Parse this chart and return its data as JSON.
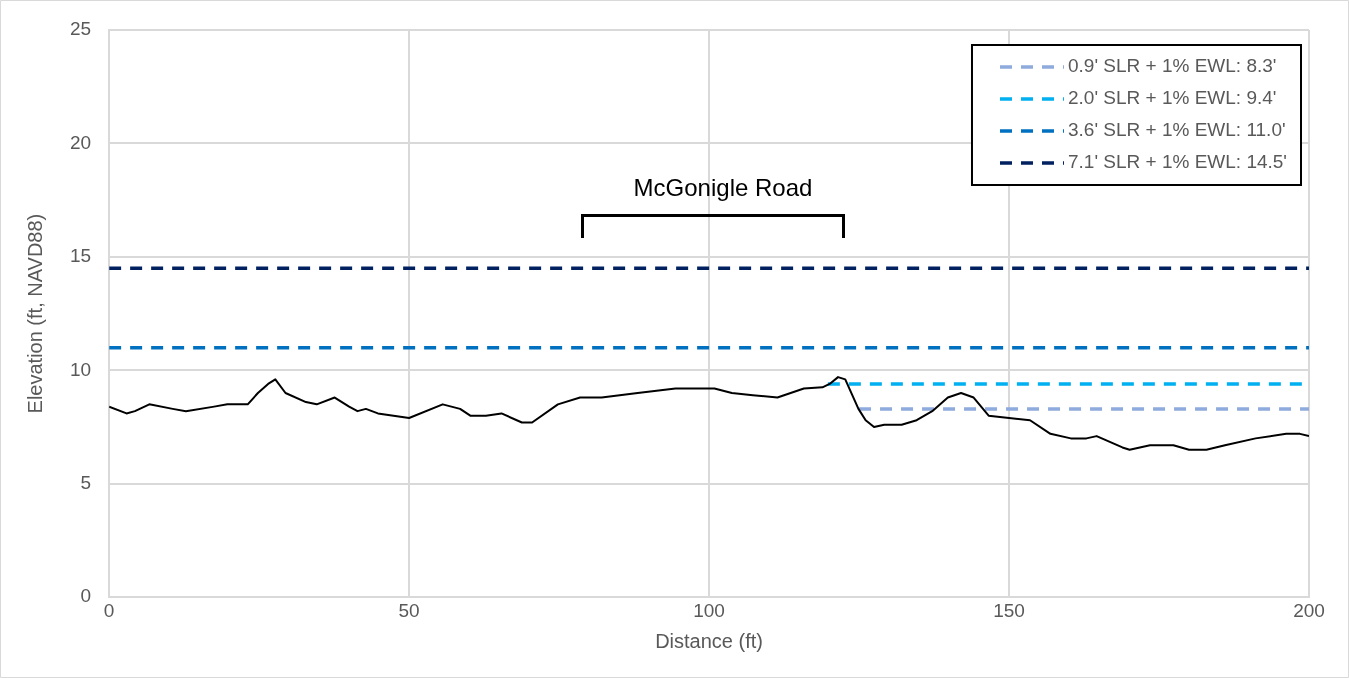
{
  "chart_data": {
    "type": "line",
    "xlabel": "Distance (ft)",
    "ylabel": "Elevation (ft, NAVD88)",
    "xlim": [
      0,
      200
    ],
    "xticks": [
      0,
      50,
      100,
      150,
      200
    ],
    "ylim": [
      0,
      25
    ],
    "yticks": [
      0,
      5,
      10,
      15,
      20,
      25
    ],
    "grid": true,
    "legend": "top right",
    "marker": "none",
    "annotations": [
      "McGonigle Road"
    ],
    "series": [
      {
        "color": "#000000",
        "line_style": "solid",
        "x": [
          0,
          2.9,
          4.3,
          6.7,
          10.6,
          12.8,
          17.5,
          19.7,
          23.1,
          24.8,
          26.5,
          27.7,
          29.4,
          32.8,
          34.6,
          37.6,
          40,
          41.4,
          42.8,
          44.8,
          50,
          55.6,
          58.5,
          60.2,
          62.8,
          65.4,
          68.8,
          70.5,
          74.8,
          78.5,
          82.1,
          88.1,
          94.4,
          100.9,
          103.8,
          107.3,
          111.4,
          115.8,
          118.9,
          120.1,
          121.5,
          122.7,
          124.9,
          126.1,
          127.5,
          129.2,
          132.1,
          134.6,
          137.2,
          139.8,
          142,
          144.1,
          146.6,
          150,
          153.5,
          156.9,
          160.3,
          162.9,
          164.6,
          168.9,
          170.1,
          173.5,
          177.4,
          180,
          182.9,
          186,
          191.1,
          196.2,
          198.5,
          200
        ],
        "values": [
          8.4,
          8.1,
          8.2,
          8.5,
          8.3,
          8.2,
          8.4,
          8.5,
          8.5,
          9.0,
          9.4,
          9.6,
          9.0,
          8.6,
          8.5,
          8.8,
          8.4,
          8.2,
          8.3,
          8.1,
          7.9,
          8.5,
          8.3,
          8.0,
          8.0,
          8.1,
          7.7,
          7.7,
          8.5,
          8.8,
          8.8,
          9.0,
          9.2,
          9.2,
          9.0,
          8.9,
          8.8,
          9.2,
          9.25,
          9.4,
          9.7,
          9.6,
          8.3,
          7.8,
          7.5,
          7.6,
          7.6,
          7.8,
          8.2,
          8.8,
          9.0,
          8.8,
          8.0,
          7.9,
          7.8,
          7.2,
          7.0,
          7.0,
          7.1,
          6.6,
          6.5,
          6.7,
          6.7,
          6.5,
          6.5,
          6.7,
          7.0,
          7.2,
          7.2,
          7.1
        ]
      },
      {
        "name": "0.9' SLR + 1% EWL: 8.3'",
        "color": "#8faadc",
        "line_style": "dashed",
        "x": [
          125,
          200
        ],
        "values": [
          8.3,
          8.3
        ]
      },
      {
        "name": "2.0' SLR + 1% EWL: 9.4'",
        "color": "#00b0f0",
        "line_style": "dashed",
        "x": [
          119.8,
          200
        ],
        "values": [
          9.4,
          9.4
        ]
      },
      {
        "name": "3.6' SLR + 1% EWL: 11.0'",
        "color": "#0070c0",
        "line_style": "dashed",
        "x": [
          0,
          200
        ],
        "values": [
          11.0,
          11.0
        ]
      },
      {
        "name": "7.1' SLR + 1% EWL: 14.5'",
        "color": "#002060",
        "line_style": "dashed",
        "x": [
          0,
          200
        ],
        "values": [
          14.5,
          14.5
        ]
      }
    ]
  }
}
